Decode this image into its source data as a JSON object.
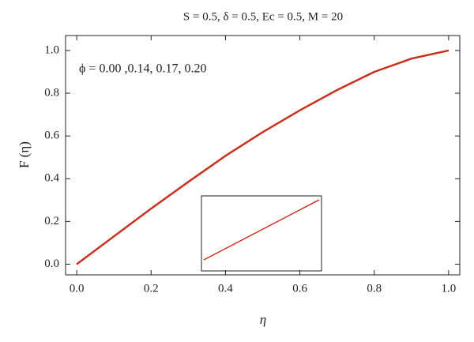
{
  "chart_data": {
    "type": "line",
    "title": "S = 0.5, δ = 0.5, Ec = 0.5, M = 20",
    "annotation": "ϕ = 0.00 ,0.14, 0.17, 0.20",
    "x_label": "η",
    "y_label": "F (η)",
    "x": [
      0,
      0.1,
      0.2,
      0.3,
      0.4,
      0.5,
      0.6,
      0.7,
      0.8,
      0.9,
      1.0
    ],
    "series": [
      {
        "color": "#c8321e",
        "values": [
          0,
          0.13,
          0.26,
          0.385,
          0.507,
          0.618,
          0.72,
          0.815,
          0.9,
          0.962,
          1.0
        ]
      },
      {
        "color": "#c8321e",
        "values": [
          0,
          0.13,
          0.26,
          0.385,
          0.507,
          0.618,
          0.72,
          0.815,
          0.9,
          0.962,
          1.0
        ]
      },
      {
        "color": "#c8321e",
        "values": [
          0,
          0.13,
          0.26,
          0.385,
          0.507,
          0.618,
          0.72,
          0.815,
          0.9,
          0.962,
          1.0
        ]
      },
      {
        "color": "#c8321e",
        "values": [
          0,
          0.13,
          0.26,
          0.385,
          0.507,
          0.618,
          0.72,
          0.815,
          0.9,
          0.962,
          1.0
        ]
      }
    ],
    "xlim": [
      -0.03,
      1.03
    ],
    "ylim": [
      -0.05,
      1.07
    ],
    "xticks": [
      {
        "value": 0,
        "label": "0.0"
      },
      0.2,
      0.4,
      0.6,
      0.8,
      {
        "value": 1,
        "label": "1.0"
      }
    ],
    "yticks": [
      {
        "value": 0,
        "label": "0.0"
      },
      0.2,
      0.4,
      0.6,
      0.8,
      {
        "value": 1,
        "label": "1.0"
      }
    ],
    "grid": false
  }
}
